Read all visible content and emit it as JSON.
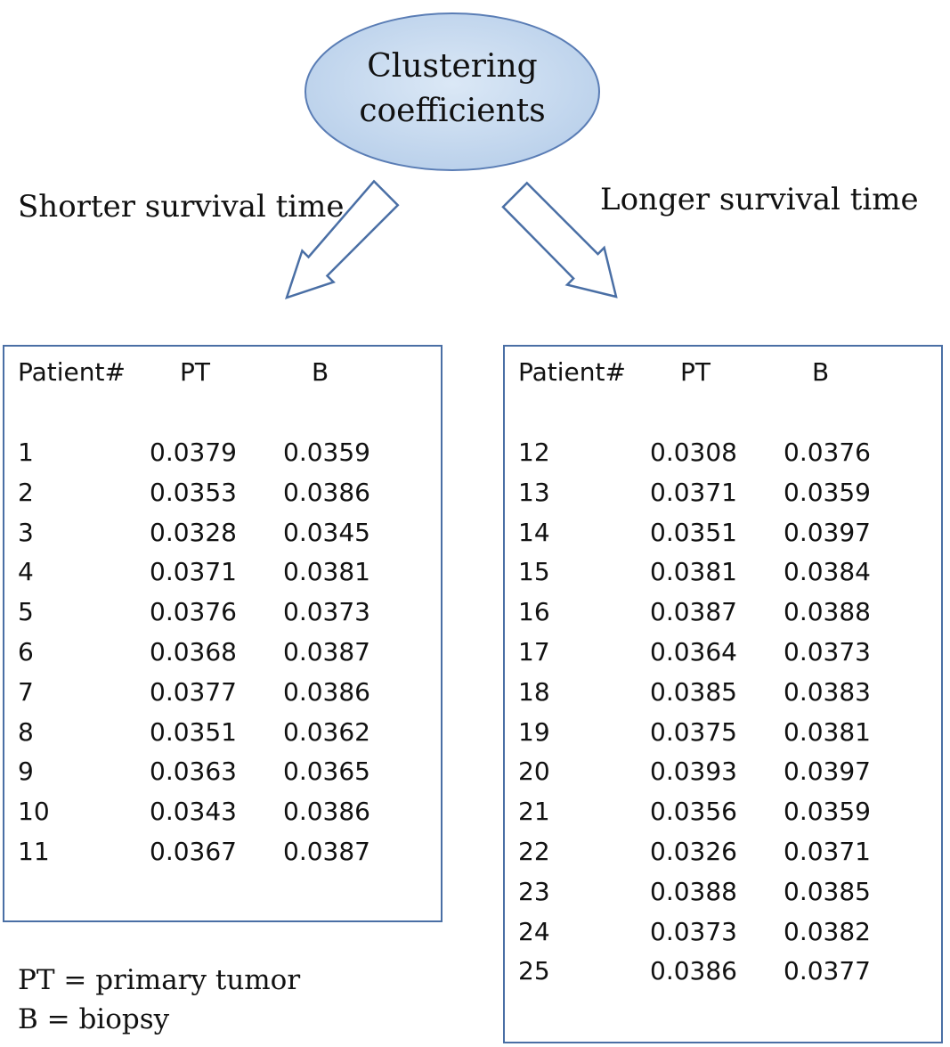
{
  "root": {
    "line1": "Clustering",
    "line2": "coefficients",
    "fill": "#c5d9ef",
    "stroke": "#5a7db5"
  },
  "branches": {
    "left_label": "Shorter survival time",
    "right_label": "Longer survival time"
  },
  "tables": [
    {
      "id": "shorter",
      "headers": [
        "Patient#",
        "PT",
        "B"
      ],
      "rows": [
        [
          "1",
          "0.0379",
          "0.0359"
        ],
        [
          "2",
          "0.0353",
          "0.0386"
        ],
        [
          "3",
          "0.0328",
          "0.0345"
        ],
        [
          "4",
          "0.0371",
          "0.0381"
        ],
        [
          "5",
          "0.0376",
          "0.0373"
        ],
        [
          "6",
          "0.0368",
          "0.0387"
        ],
        [
          "7",
          "0.0377",
          "0.0386"
        ],
        [
          "8",
          "0.0351",
          "0.0362"
        ],
        [
          "9",
          "0.0363",
          "0.0365"
        ],
        [
          "10",
          "0.0343",
          "0.0386"
        ],
        [
          "11",
          "0.0367",
          "0.0387"
        ]
      ]
    },
    {
      "id": "longer",
      "headers": [
        "Patient#",
        "PT",
        "B"
      ],
      "rows": [
        [
          "12",
          "0.0308",
          "0.0376"
        ],
        [
          "13",
          "0.0371",
          "0.0359"
        ],
        [
          "14",
          "0.0351",
          "0.0397"
        ],
        [
          "15",
          "0.0381",
          "0.0384"
        ],
        [
          "16",
          "0.0387",
          "0.0388"
        ],
        [
          "17",
          "0.0364",
          "0.0373"
        ],
        [
          "18",
          "0.0385",
          "0.0383"
        ],
        [
          "19",
          "0.0375",
          "0.0381"
        ],
        [
          "20",
          "0.0393",
          "0.0397"
        ],
        [
          "21",
          "0.0356",
          "0.0359"
        ],
        [
          "22",
          "0.0326",
          "0.0371"
        ],
        [
          "23",
          "0.0388",
          "0.0385"
        ],
        [
          "24",
          "0.0373",
          "0.0382"
        ],
        [
          "25",
          "0.0386",
          "0.0377"
        ]
      ]
    }
  ],
  "legend": {
    "pt": "PT = primary tumor",
    "b": "B = biopsy"
  },
  "colors": {
    "box_border": "#4a6fa5",
    "arrow_stroke": "#4a6fa5"
  }
}
